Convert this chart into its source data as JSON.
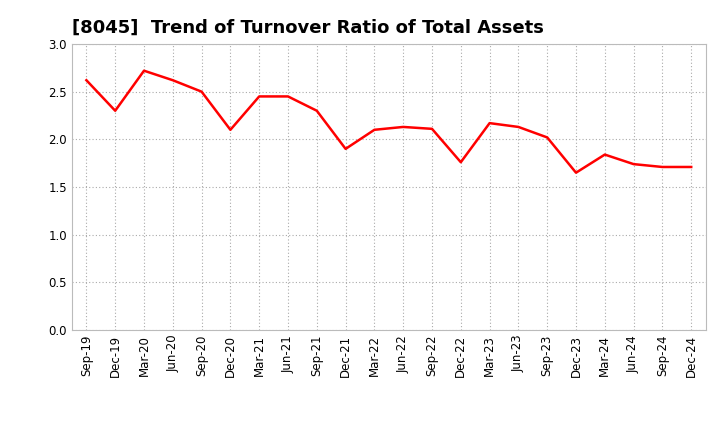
{
  "title": "[8045]  Trend of Turnover Ratio of Total Assets",
  "x_labels": [
    "Sep-19",
    "Dec-19",
    "Mar-20",
    "Jun-20",
    "Sep-20",
    "Dec-20",
    "Mar-21",
    "Jun-21",
    "Sep-21",
    "Dec-21",
    "Mar-22",
    "Jun-22",
    "Sep-22",
    "Dec-22",
    "Mar-23",
    "Jun-23",
    "Sep-23",
    "Dec-23",
    "Mar-24",
    "Jun-24",
    "Sep-24",
    "Dec-24"
  ],
  "values": [
    2.62,
    2.3,
    2.72,
    2.62,
    2.5,
    2.1,
    2.45,
    2.45,
    2.3,
    1.9,
    2.1,
    2.13,
    2.11,
    1.76,
    2.17,
    2.13,
    2.02,
    1.65,
    1.84,
    1.74,
    1.71,
    1.71
  ],
  "line_color": "#FF0000",
  "line_width": 1.8,
  "ylim": [
    0.0,
    3.0
  ],
  "yticks": [
    0.0,
    0.5,
    1.0,
    1.5,
    2.0,
    2.5,
    3.0
  ],
  "background_color": "#FFFFFF",
  "grid_color": "#AAAAAA",
  "title_fontsize": 13,
  "tick_fontsize": 8.5
}
